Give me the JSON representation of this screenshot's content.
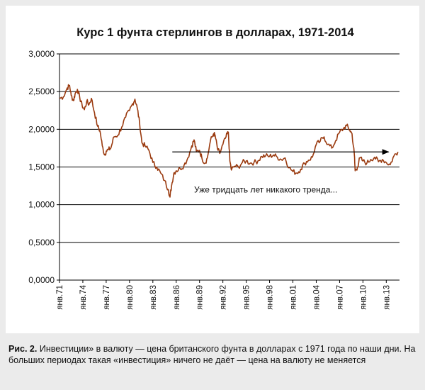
{
  "chart_data": {
    "type": "line",
    "title": "Курс 1 фунта стерлингов в долларах, 1971-2014",
    "xlabel": "",
    "ylabel": "",
    "ylim": [
      0,
      3
    ],
    "yticks": [
      0,
      0.5,
      1,
      1.5,
      2,
      2.5,
      3
    ],
    "ytick_labels": [
      "0,0000",
      "0,5000",
      "1,0000",
      "1,5000",
      "2,0000",
      "2,5000",
      "3,0000"
    ],
    "xlim": [
      1971,
      2014.7
    ],
    "xticks": [
      1971,
      1974,
      1977,
      1980,
      1983,
      1986,
      1989,
      1992,
      1995,
      1998,
      2001,
      2004,
      2007,
      2010,
      2013
    ],
    "xtick_labels": [
      "янв.71",
      "янв.74",
      "янв.77",
      "янв.80",
      "янв.83",
      "янв.86",
      "янв.89",
      "янв.92",
      "янв.95",
      "янв.98",
      "янв.01",
      "янв.04",
      "янв.07",
      "янв.10",
      "янв.13"
    ],
    "grid": true,
    "line_color": "#9a3a0f",
    "series": [
      {
        "x": [
          1971.0,
          1971.5,
          1972.0,
          1972.3,
          1972.5,
          1972.8,
          1973.0,
          1973.3,
          1973.6,
          1973.9,
          1974.2,
          1974.5,
          1974.8,
          1975.1,
          1975.5,
          1975.9,
          1976.2,
          1976.5,
          1976.8,
          1977.0,
          1977.3,
          1977.6,
          1978.0,
          1978.5,
          1979.0,
          1979.5,
          1980.0,
          1980.4,
          1980.7,
          1981.0,
          1981.3,
          1981.6,
          1982.0,
          1982.5,
          1983.0,
          1983.5,
          1984.0,
          1984.5,
          1985.0,
          1985.2,
          1985.4,
          1985.7,
          1986.0,
          1986.5,
          1987.0,
          1987.5,
          1988.0,
          1988.3,
          1988.6,
          1989.0,
          1989.3,
          1989.7,
          1990.0,
          1990.4,
          1990.8,
          1991.0,
          1991.3,
          1991.6,
          1992.0,
          1992.4,
          1992.7,
          1992.9,
          1993.1,
          1993.5,
          1994.0,
          1994.5,
          1995.0,
          1995.5,
          1996.0,
          1996.5,
          1997.0,
          1997.5,
          1998.0,
          1998.5,
          1999.0,
          1999.5,
          2000.0,
          2000.5,
          2001.0,
          2001.5,
          2002.0,
          2002.5,
          2003.0,
          2003.5,
          2004.0,
          2004.5,
          2005.0,
          2005.5,
          2006.0,
          2006.5,
          2007.0,
          2007.5,
          2007.9,
          2008.3,
          2008.6,
          2008.9,
          2009.0,
          2009.3,
          2009.6,
          2010.0,
          2010.5,
          2011.0,
          2011.5,
          2012.0,
          2012.5,
          2013.0,
          2013.5,
          2014.0,
          2014.5
        ],
        "values": [
          2.41,
          2.43,
          2.55,
          2.58,
          2.45,
          2.38,
          2.47,
          2.53,
          2.42,
          2.32,
          2.26,
          2.37,
          2.33,
          2.41,
          2.22,
          2.04,
          1.98,
          1.78,
          1.66,
          1.71,
          1.73,
          1.75,
          1.9,
          1.92,
          2.03,
          2.16,
          2.25,
          2.34,
          2.4,
          2.28,
          2.08,
          1.82,
          1.78,
          1.72,
          1.56,
          1.5,
          1.42,
          1.32,
          1.2,
          1.1,
          1.25,
          1.42,
          1.45,
          1.48,
          1.52,
          1.62,
          1.78,
          1.86,
          1.7,
          1.72,
          1.62,
          1.55,
          1.62,
          1.85,
          1.94,
          1.92,
          1.74,
          1.68,
          1.8,
          1.9,
          1.96,
          1.58,
          1.46,
          1.51,
          1.5,
          1.56,
          1.58,
          1.55,
          1.56,
          1.58,
          1.64,
          1.65,
          1.64,
          1.66,
          1.63,
          1.6,
          1.62,
          1.49,
          1.44,
          1.42,
          1.47,
          1.55,
          1.59,
          1.63,
          1.8,
          1.84,
          1.9,
          1.8,
          1.75,
          1.85,
          1.96,
          2.01,
          2.05,
          1.99,
          1.94,
          1.66,
          1.45,
          1.5,
          1.62,
          1.58,
          1.55,
          1.6,
          1.63,
          1.57,
          1.6,
          1.56,
          1.53,
          1.65,
          1.7
        ]
      }
    ],
    "arrow": {
      "x0": 1985.5,
      "x1": 2013.3,
      "y": 1.7
    },
    "annotation": {
      "text": "Уже тридцать лет никакого тренда...",
      "x": 1988.3,
      "y": 1.16
    }
  },
  "caption": {
    "label": "Рис. 2.",
    "text": " Инвестиции» в валюту — цена британского фунта в долларах с 1971 года по наши дни. На больших периодах такая «инвестиция» ничего не даёт — цена на валюту не меняется"
  }
}
